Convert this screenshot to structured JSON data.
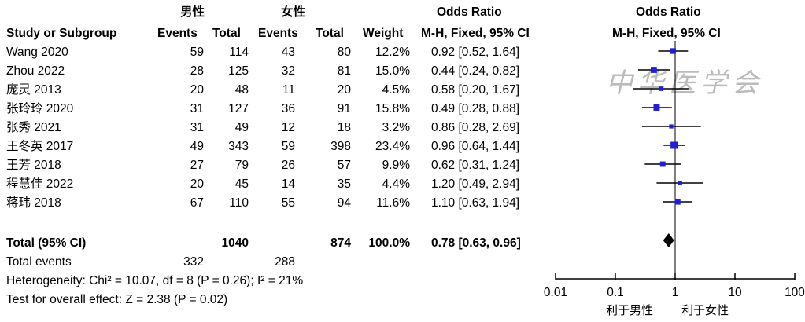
{
  "headers": {
    "group1": "男性",
    "group2": "女性",
    "or_title": "Odds Ratio",
    "or_method": "M-H, Fixed, 95% CI",
    "study": "Study or Subgroup",
    "events": "Events",
    "total": "Total",
    "weight": "Weight"
  },
  "studies": [
    {
      "name": "Wang 2020",
      "e1": "59",
      "t1": "114",
      "e2": "43",
      "t2": "80",
      "weight": "12.2%",
      "ci": "0.92 [0.52, 1.64]"
    },
    {
      "name": "Zhou 2022",
      "e1": "28",
      "t1": "125",
      "e2": "32",
      "t2": "81",
      "weight": "15.0%",
      "ci": "0.44 [0.24, 0.82]"
    },
    {
      "name": "庞灵 2013",
      "e1": "20",
      "t1": "48",
      "e2": "11",
      "t2": "20",
      "weight": "4.5%",
      "ci": "0.58 [0.20, 1.67]"
    },
    {
      "name": "张玲玲 2020",
      "e1": "31",
      "t1": "127",
      "e2": "36",
      "t2": "91",
      "weight": "15.8%",
      "ci": "0.49 [0.28, 0.88]"
    },
    {
      "name": "张秀 2021",
      "e1": "31",
      "t1": "49",
      "e2": "12",
      "t2": "18",
      "weight": "3.2%",
      "ci": "0.86 [0.28, 2.69]"
    },
    {
      "name": "王冬英 2017",
      "e1": "49",
      "t1": "343",
      "e2": "59",
      "t2": "398",
      "weight": "23.4%",
      "ci": "0.96 [0.64, 1.44]"
    },
    {
      "name": "王芳 2018",
      "e1": "27",
      "t1": "79",
      "e2": "26",
      "t2": "57",
      "weight": "9.9%",
      "ci": "0.62 [0.31, 1.24]"
    },
    {
      "name": "程慧佳 2022",
      "e1": "20",
      "t1": "45",
      "e2": "14",
      "t2": "35",
      "weight": "4.4%",
      "ci": "1.20 [0.49, 2.94]"
    },
    {
      "name": "蒋玮 2018",
      "e1": "67",
      "t1": "110",
      "e2": "55",
      "t2": "94",
      "weight": "11.6%",
      "ci": "1.10 [0.63, 1.94]"
    }
  ],
  "total": {
    "label": "Total (95% CI)",
    "t1": "1040",
    "t2": "874",
    "weight": "100.0%",
    "ci": "0.78 [0.63, 0.96]",
    "events_label": "Total events",
    "e1": "332",
    "e2": "288"
  },
  "heterogeneity": "Heterogeneity: Chi² = 10.07, df = 8 (P = 0.26); I² = 21%",
  "overall_effect": "Test for overall effect: Z = 2.38 (P = 0.02)",
  "axis": {
    "ticks": [
      "0.01",
      "0.1",
      "1",
      "10",
      "100"
    ],
    "left_label": "利于男性",
    "right_label": "利于女性"
  },
  "watermark": "中华医学会",
  "chart_data": {
    "type": "forest",
    "scale": "log",
    "xlim": [
      0.01,
      100
    ],
    "reference_line": 1,
    "studies": [
      {
        "name": "Wang 2020",
        "or": 0.92,
        "lo": 0.52,
        "hi": 1.64,
        "weight": 12.2
      },
      {
        "name": "Zhou 2022",
        "or": 0.44,
        "lo": 0.24,
        "hi": 0.82,
        "weight": 15.0
      },
      {
        "name": "庞灵 2013",
        "or": 0.58,
        "lo": 0.2,
        "hi": 1.67,
        "weight": 4.5
      },
      {
        "name": "张玲玲 2020",
        "or": 0.49,
        "lo": 0.28,
        "hi": 0.88,
        "weight": 15.8
      },
      {
        "name": "张秀 2021",
        "or": 0.86,
        "lo": 0.28,
        "hi": 2.69,
        "weight": 3.2
      },
      {
        "name": "王冬英 2017",
        "or": 0.96,
        "lo": 0.64,
        "hi": 1.44,
        "weight": 23.4
      },
      {
        "name": "王芳 2018",
        "or": 0.62,
        "lo": 0.31,
        "hi": 1.24,
        "weight": 9.9
      },
      {
        "name": "程慧佳 2022",
        "or": 1.2,
        "lo": 0.49,
        "hi": 2.94,
        "weight": 4.4
      },
      {
        "name": "蒋玮 2018",
        "or": 1.1,
        "lo": 0.63,
        "hi": 1.94,
        "weight": 11.6
      }
    ],
    "pooled": {
      "or": 0.78,
      "lo": 0.63,
      "hi": 0.96
    },
    "colors": {
      "square": "#1f1fd6",
      "line": "#000000",
      "diamond": "#000000"
    }
  }
}
